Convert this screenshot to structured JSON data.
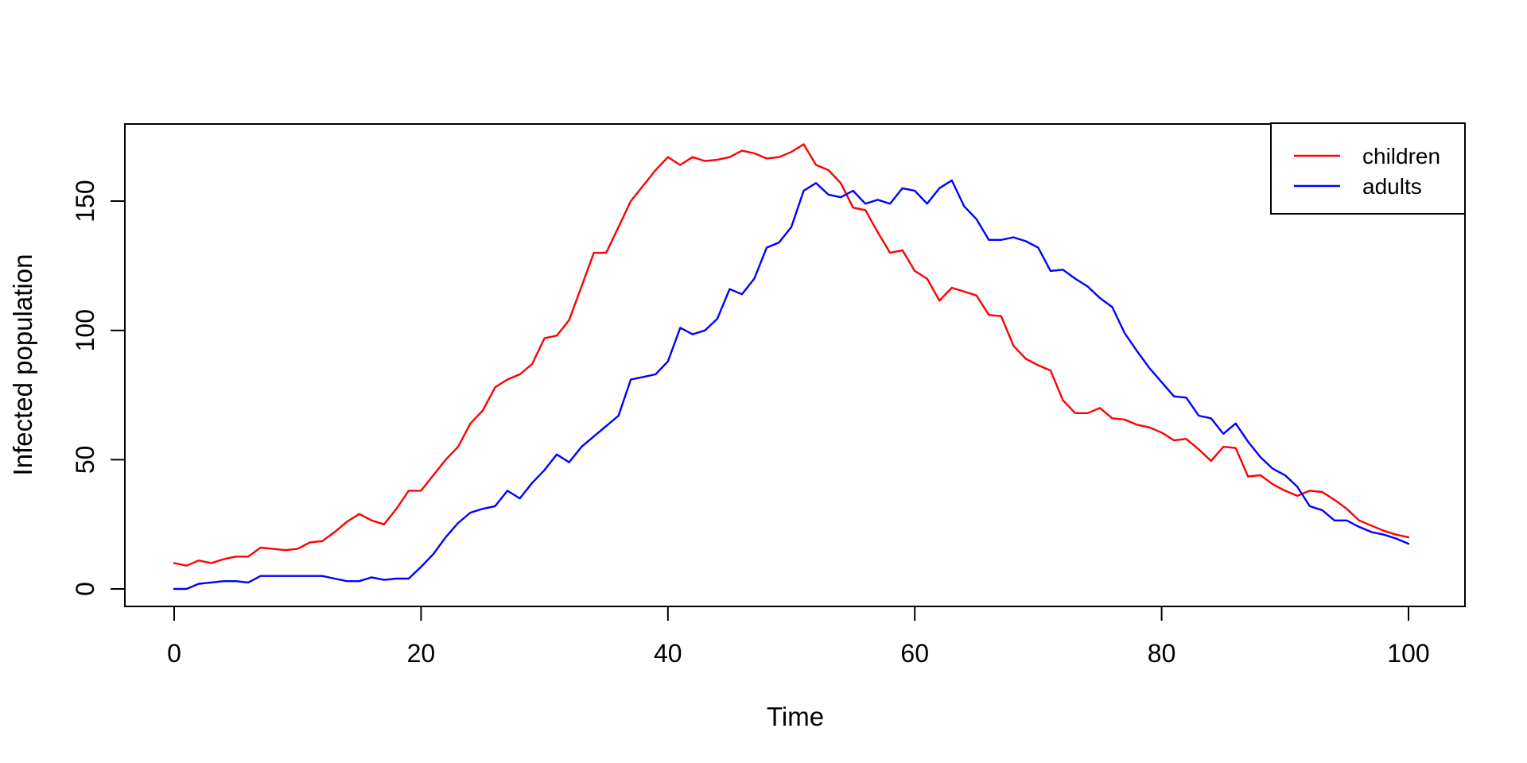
{
  "chart_data": {
    "type": "line",
    "title": "",
    "xlabel": "Time",
    "ylabel": "Infected population",
    "x": {
      "start": 0,
      "end": 100,
      "step": 1
    },
    "x_ticks": [
      0,
      20,
      40,
      60,
      80,
      100
    ],
    "y_ticks": [
      0,
      50,
      100,
      150
    ],
    "xlim": [
      -4,
      104
    ],
    "ylim": [
      -7,
      181
    ],
    "grid": false,
    "legend_position": "top-right",
    "legend_border": true,
    "axis_color": "#000000",
    "background_color": "#ffffff",
    "series": [
      {
        "name": "children",
        "color": "#FF0000",
        "values": [
          10,
          9,
          11,
          10,
          11.5,
          12.5,
          12.5,
          16,
          15.5,
          15,
          15.5,
          18,
          18.5,
          22,
          26,
          29,
          26.5,
          25,
          31,
          38,
          38,
          44,
          50,
          55,
          64,
          69,
          78,
          81,
          83,
          87,
          97,
          98,
          104,
          117,
          130,
          130,
          140,
          150,
          156,
          162,
          167,
          164,
          167,
          165.5,
          166,
          167,
          169.5,
          168.5,
          166.5,
          167,
          169,
          172,
          164,
          162,
          157,
          147.5,
          146.5,
          138,
          130,
          131,
          123,
          120,
          111.5,
          116.5,
          115,
          113.5,
          106,
          105.5,
          94,
          89,
          86.5,
          84.5,
          73,
          68,
          68,
          70,
          66,
          65.5,
          63.5,
          62.5,
          60.5,
          57.5,
          58,
          54,
          49.5,
          55,
          54.5,
          43.5,
          44,
          40.5,
          38,
          36,
          38,
          37.5,
          34.5,
          31,
          26.5,
          24.5,
          22.5,
          21,
          20
        ]
      },
      {
        "name": "adults",
        "color": "#0000FF",
        "values": [
          0,
          0,
          2,
          2.5,
          3,
          3,
          2.5,
          5,
          5,
          5,
          5,
          5,
          5,
          4,
          3,
          3,
          4.5,
          3.5,
          4,
          4,
          8.5,
          13.5,
          20,
          25.5,
          29.5,
          31,
          32,
          38,
          35,
          41,
          46,
          52,
          49,
          55,
          59,
          63,
          67,
          81,
          82,
          83,
          88,
          101,
          98.5,
          100,
          104.5,
          116,
          114,
          120,
          132,
          134,
          140,
          154,
          157,
          152.5,
          151.5,
          154,
          149,
          150.5,
          149,
          155,
          154,
          149,
          155,
          158,
          148,
          143,
          135,
          135,
          136,
          134.5,
          132,
          123,
          123.5,
          120,
          117,
          112.5,
          109,
          99,
          92,
          85.5,
          80,
          74.5,
          74,
          67,
          66,
          60,
          64,
          57,
          51,
          46.5,
          44,
          39.5,
          32,
          30.5,
          26.5,
          26.5,
          24,
          22,
          21,
          19.5,
          17.5
        ]
      }
    ]
  }
}
